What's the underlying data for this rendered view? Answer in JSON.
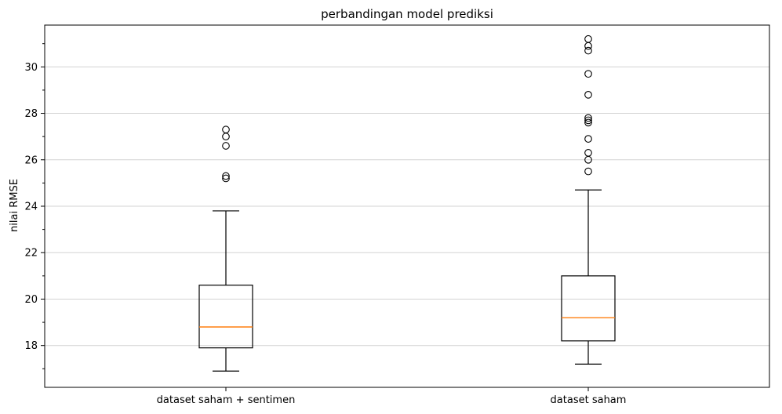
{
  "chart_data": {
    "type": "box",
    "title": "perbandingan model prediksi",
    "xlabel": "",
    "ylabel": "nilai RMSE",
    "ylim": [
      16.2,
      31.8
    ],
    "yticks": [
      18,
      20,
      22,
      24,
      26,
      28,
      30
    ],
    "grid": "horizontal",
    "categories": [
      "dataset saham + sentimen",
      "dataset saham"
    ],
    "boxes": [
      {
        "category": "dataset saham + sentimen",
        "whisker_low": 16.9,
        "q1": 17.9,
        "median": 18.8,
        "q3": 20.6,
        "whisker_high": 23.8,
        "outliers": [
          25.2,
          25.3,
          26.6,
          27.0,
          27.3
        ]
      },
      {
        "category": "dataset saham",
        "whisker_low": 17.2,
        "q1": 18.2,
        "median": 19.2,
        "q3": 21.0,
        "whisker_high": 24.7,
        "outliers": [
          25.5,
          26.0,
          26.3,
          26.9,
          27.6,
          27.7,
          27.8,
          28.8,
          29.7,
          30.7,
          30.9,
          31.2
        ]
      }
    ],
    "colors": {
      "box": "#000000",
      "median": "#ff7f0e",
      "grid": "#d3d3d3"
    }
  }
}
